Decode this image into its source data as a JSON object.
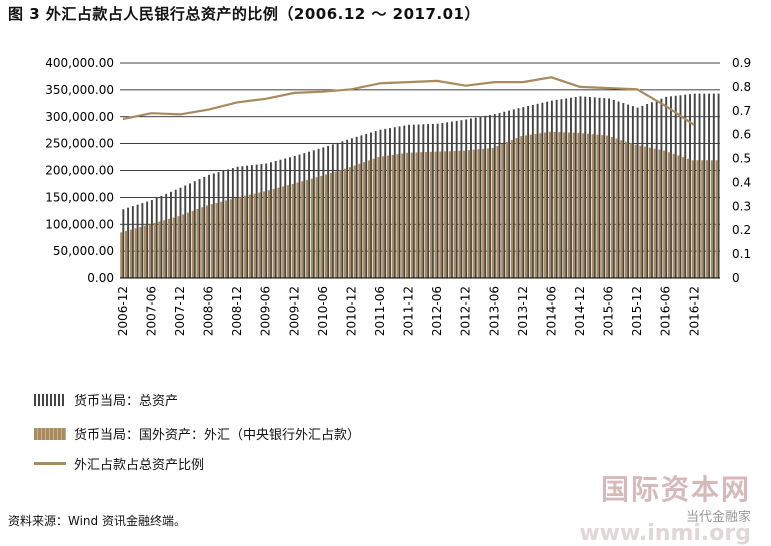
{
  "title": "图 3  外汇占款占人民银行总资产的比例（2006.12 ～ 2017.01）",
  "source": "资料来源：Wind 资讯金融终端。",
  "watermark": {
    "main": "国际资本网",
    "sub": "当代金融家",
    "url": "www.inmi.org"
  },
  "colors": {
    "total_bar": "#444444",
    "fx_bar": "#a88a5e",
    "ratio_line": "#a88a5e",
    "grid": "#000000"
  },
  "chart_data": {
    "type": "bar",
    "title": "图 3  外汇占款占人民银行总资产的比例（2006.12 ～ 2017.01）",
    "categories": [
      "2006-12",
      "2007-06",
      "2007-12",
      "2008-06",
      "2008-12",
      "2009-06",
      "2009-12",
      "2010-06",
      "2010-12",
      "2011-06",
      "2011-12",
      "2012-06",
      "2012-12",
      "2013-06",
      "2013-12",
      "2014-06",
      "2014-12",
      "2015-06",
      "2015-12",
      "2016-06",
      "2016-12"
    ],
    "ylim": [
      0,
      400000
    ],
    "yticks": [
      "0.00",
      "50,000.00",
      "100,000.00",
      "150,000.00",
      "200,000.00",
      "250,000.00",
      "300,000.00",
      "350,000.00",
      "400,000.00"
    ],
    "y2lim": [
      0,
      0.9
    ],
    "y2ticks": [
      "0",
      "0.1",
      "0.2",
      "0.3",
      "0.4",
      "0.5",
      "0.6",
      "0.7",
      "0.8",
      "0.9"
    ],
    "grid": true,
    "legend_position": "bottom",
    "series": [
      {
        "name": "货币当局：总资产",
        "type": "bar",
        "axis": "left",
        "values": [
          128000,
          145000,
          168000,
          192000,
          207000,
          213000,
          227000,
          243000,
          260000,
          276000,
          285000,
          287000,
          295000,
          305000,
          318000,
          330000,
          338000,
          334000,
          317000,
          337000,
          343000
        ]
      },
      {
        "name": "货币当局：国外资产：外汇（中央银行外汇占款）",
        "type": "bar",
        "axis": "left",
        "values": [
          85000,
          100000,
          115000,
          135000,
          149000,
          161000,
          175000,
          190000,
          206000,
          225000,
          233000,
          235000,
          237000,
          242000,
          264000,
          272000,
          270000,
          265000,
          248000,
          237000,
          219000
        ]
      },
      {
        "name": "外汇占款占总资产比例",
        "type": "line",
        "axis": "right",
        "values": [
          0.665,
          0.69,
          0.685,
          0.705,
          0.735,
          0.75,
          0.775,
          0.78,
          0.79,
          0.815,
          0.82,
          0.825,
          0.805,
          0.82,
          0.82,
          0.84,
          0.8,
          0.795,
          0.79,
          0.72,
          0.64
        ]
      }
    ]
  }
}
